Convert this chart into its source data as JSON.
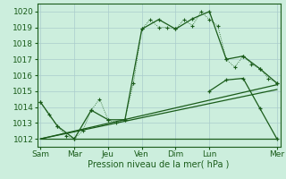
{
  "xlabel": "Pression niveau de la mer( hPa )",
  "bg_color": "#cceedd",
  "grid_color": "#aacccc",
  "line_color": "#1a5c1a",
  "ylim": [
    1011.5,
    1020.5
  ],
  "yticks": [
    1012,
    1013,
    1014,
    1015,
    1016,
    1017,
    1018,
    1019,
    1020
  ],
  "day_labels": [
    "Sam",
    "Mar",
    "Jeu",
    "Ven",
    "Dim",
    "Lun",
    "Mer"
  ],
  "day_positions": [
    0,
    2,
    4,
    6,
    8,
    10,
    14
  ],
  "xlim": [
    -0.2,
    14.2
  ],
  "series1_x": [
    0,
    0.5,
    1,
    1.5,
    2,
    2.5,
    3,
    3.5,
    4,
    4.5,
    5,
    5.5,
    6,
    6.5,
    7,
    7.5,
    8,
    8.5,
    9,
    9.5,
    10,
    10.5,
    11,
    11.5,
    12,
    12.5,
    13,
    13.5,
    14
  ],
  "series1_y": [
    1014.3,
    1013.5,
    1012.8,
    1012.2,
    1012.0,
    1012.5,
    1013.8,
    1014.5,
    1013.2,
    1013.0,
    1013.2,
    1015.5,
    1018.9,
    1019.5,
    1019.0,
    1019.0,
    1018.9,
    1019.5,
    1019.1,
    1020.0,
    1019.5,
    1019.1,
    1017.0,
    1016.5,
    1017.2,
    1016.7,
    1016.4,
    1015.8,
    1015.5
  ],
  "series2_x": [
    0,
    1,
    2,
    3,
    4,
    5,
    6,
    7,
    8,
    9,
    10,
    11,
    12,
    13,
    14
  ],
  "series2_y": [
    1014.3,
    1012.8,
    1012.0,
    1013.8,
    1013.2,
    1013.2,
    1018.9,
    1019.5,
    1018.9,
    1019.55,
    1020.0,
    1017.0,
    1017.2,
    1016.4,
    1015.5
  ],
  "series3_x": [
    0,
    14
  ],
  "series3_y": [
    1012.0,
    1012.0
  ],
  "series4_x": [
    0,
    14
  ],
  "series4_y": [
    1012.0,
    1015.1
  ],
  "series5_x": [
    0,
    14
  ],
  "series5_y": [
    1012.0,
    1015.4
  ],
  "series6_x": [
    10,
    11,
    12,
    13,
    14
  ],
  "series6_y": [
    1015.0,
    1015.7,
    1015.8,
    1013.9,
    1012.0
  ],
  "line_width": 0.9,
  "font_size": 7,
  "tick_font_size": 6.5
}
